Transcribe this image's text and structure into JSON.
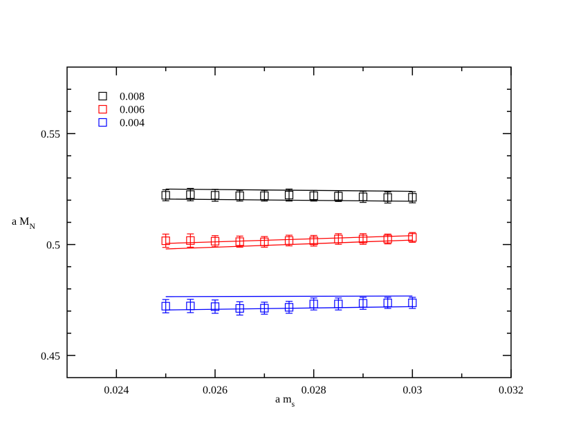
{
  "chart_data": {
    "type": "scatter",
    "title": "",
    "xlabel": {
      "main": "a m",
      "sub": "s"
    },
    "ylabel": {
      "main": "a M",
      "sub": "N"
    },
    "xlim": [
      0.023,
      0.032
    ],
    "ylim": [
      0.44,
      0.58
    ],
    "xticks": [
      0.024,
      0.026,
      0.028,
      0.03,
      0.032
    ],
    "xtick_labels": [
      "0.024",
      "0.026",
      "0.028",
      "0.03",
      "0.032"
    ],
    "yticks": [
      0.45,
      0.5,
      0.55
    ],
    "ytick_labels": [
      "0.45",
      "0.5",
      "0.55"
    ],
    "grid": false,
    "legend_position": "top-left",
    "series": [
      {
        "name": "0.008",
        "color": "#000000",
        "x": [
          0.025,
          0.0255,
          0.026,
          0.0265,
          0.027,
          0.0275,
          0.028,
          0.0285,
          0.029,
          0.0295,
          0.03
        ],
        "y": [
          0.5222,
          0.5225,
          0.5222,
          0.522,
          0.522,
          0.5223,
          0.522,
          0.5218,
          0.5215,
          0.5212,
          0.5213
        ],
        "err": [
          0.0025,
          0.0028,
          0.0027,
          0.0024,
          0.0024,
          0.0027,
          0.0024,
          0.0024,
          0.0025,
          0.0025,
          0.0025
        ],
        "band": {
          "x": [
            0.025,
            0.03
          ],
          "upper": [
            0.525,
            0.524
          ],
          "lower": [
            0.5205,
            0.5195
          ]
        }
      },
      {
        "name": "0.006",
        "color": "#ff0000",
        "x": [
          0.025,
          0.0255,
          0.026,
          0.0265,
          0.027,
          0.0275,
          0.028,
          0.0285,
          0.029,
          0.0295,
          0.03
        ],
        "y": [
          0.5017,
          0.5018,
          0.5015,
          0.5013,
          0.5012,
          0.5018,
          0.5017,
          0.5025,
          0.5025,
          0.5025,
          0.5032
        ],
        "err": [
          0.003,
          0.003,
          0.0025,
          0.0025,
          0.0024,
          0.0024,
          0.0024,
          0.0024,
          0.0024,
          0.0022,
          0.0022
        ],
        "band": {
          "x": [
            0.025,
            0.03
          ],
          "upper": [
            0.5005,
            0.504
          ],
          "lower": [
            0.498,
            0.502
          ]
        }
      },
      {
        "name": "0.004",
        "color": "#0000ff",
        "x": [
          0.025,
          0.0255,
          0.026,
          0.0265,
          0.027,
          0.0275,
          0.028,
          0.0285,
          0.029,
          0.0295,
          0.03
        ],
        "y": [
          0.4722,
          0.4723,
          0.472,
          0.4712,
          0.4713,
          0.4717,
          0.4732,
          0.4732,
          0.4735,
          0.4737,
          0.4737
        ],
        "err": [
          0.003,
          0.003,
          0.003,
          0.003,
          0.0027,
          0.0027,
          0.0027,
          0.0027,
          0.0027,
          0.0025,
          0.0025
        ],
        "band": {
          "x": [
            0.025,
            0.03
          ],
          "upper": [
            0.4765,
            0.4768
          ],
          "lower": [
            0.4705,
            0.472
          ]
        }
      }
    ]
  }
}
